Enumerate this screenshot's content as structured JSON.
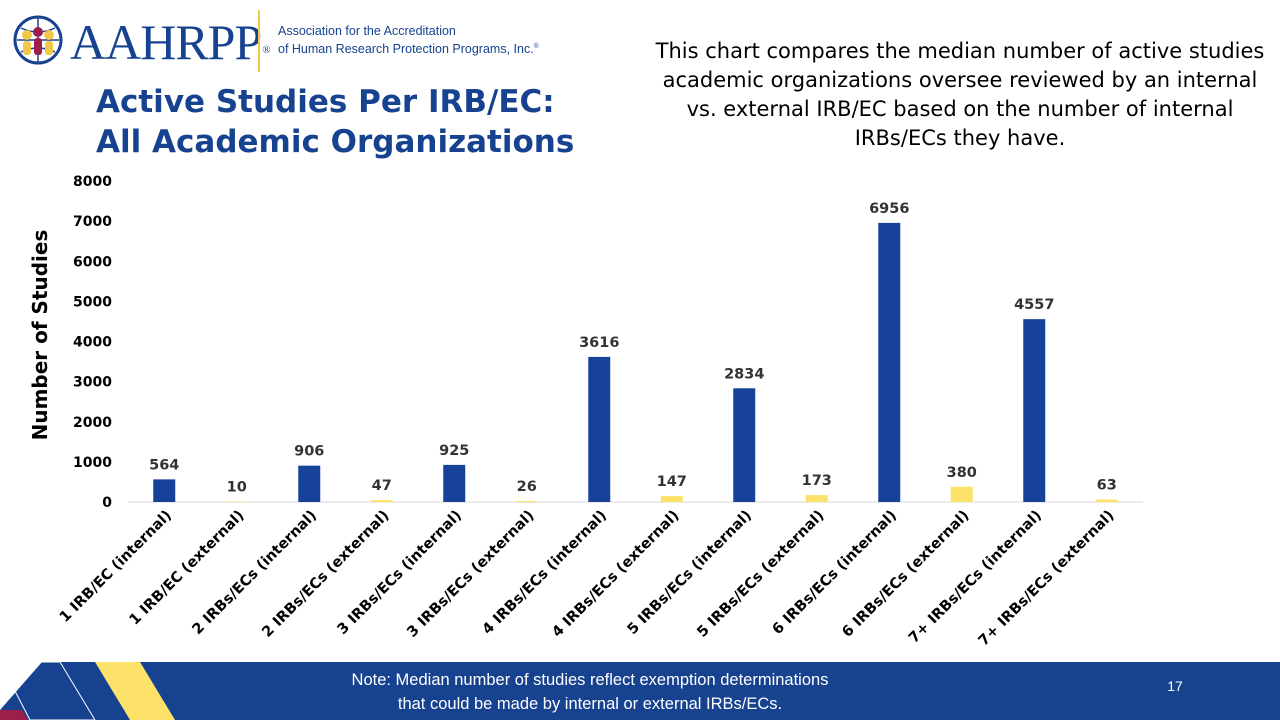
{
  "logo": {
    "wordmark": "AAHRPP",
    "registered": "®",
    "subtitle_line1": "Association for the Accreditation",
    "subtitle_line2": "of Human Research Protection Programs, Inc.",
    "subtitle_reg": "®"
  },
  "title": {
    "line1": "Active Studies Per IRB/EC:",
    "line2": "All Academic Organizations"
  },
  "description": "This chart compares the median number of active studies academic organizations oversee reviewed by an internal vs. external IRB/EC based on the number of internal IRBs/ECs they have.",
  "footer": {
    "note_line1": "Note: Median number of studies reflect exemption determinations",
    "note_line2": "that could be made by internal or external IRBs/ECs.",
    "page_number": "17"
  },
  "colors": {
    "internal": "#16429a",
    "external": "#fde26a",
    "brand_blue": "#16428f",
    "accent_yellow": "#f2c84b",
    "accent_maroon": "#9b1e4b"
  },
  "chart_data": {
    "type": "bar",
    "title": "",
    "ylabel": "Number of Studies",
    "xlabel": "",
    "ylim": [
      0,
      8000
    ],
    "yticks": [
      0,
      1000,
      2000,
      3000,
      4000,
      5000,
      6000,
      7000,
      8000
    ],
    "grid": false,
    "legend": "none",
    "categories": [
      "1 IRB/EC (internal)",
      "1 IRB/EC (external)",
      "2 IRBs/ECs (internal)",
      "2 IRBs/ECs (external)",
      "3 IRBs/ECs (internal)",
      "3 IRBs/ECs (external)",
      "4 IRBs/ECs (internal)",
      "4 IRBs/ECs (external)",
      "5 IRBs/ECs (internal)",
      "5 IRBs/ECs (external)",
      "6 IRBs/ECs (internal)",
      "6 IRBs/ECs (external)",
      "7+ IRBs/ECs (internal)",
      "7+ IRBs/ECs (external)"
    ],
    "values": [
      564,
      10,
      906,
      47,
      925,
      26,
      3616,
      147,
      2834,
      173,
      6956,
      380,
      4557,
      63
    ],
    "bar_colors": [
      "#16429a",
      "#fde26a",
      "#16429a",
      "#fde26a",
      "#16429a",
      "#fde26a",
      "#16429a",
      "#fde26a",
      "#16429a",
      "#fde26a",
      "#16429a",
      "#fde26a",
      "#16429a",
      "#fde26a"
    ]
  }
}
